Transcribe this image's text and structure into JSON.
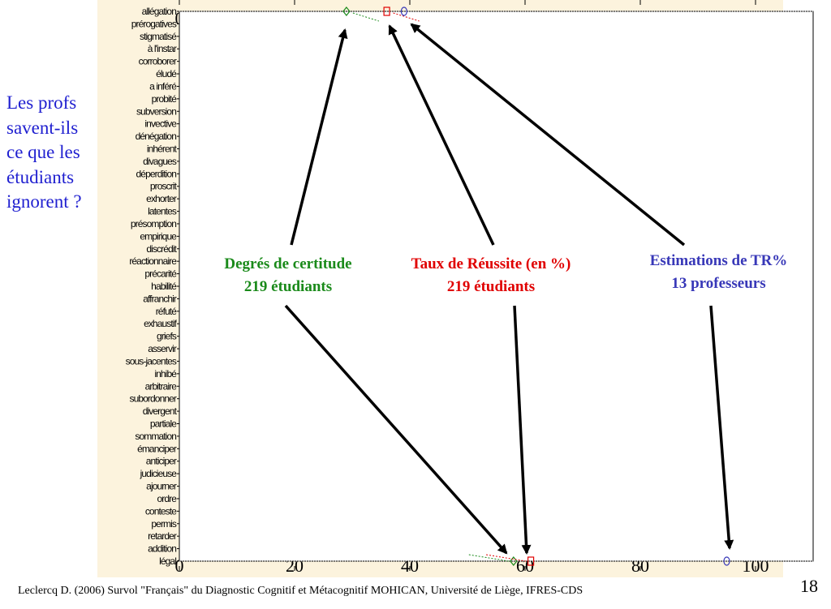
{
  "question": "Les profs\nsavent-ils\nce que les\nétudiants\nignorent ?",
  "callouts": {
    "certitude": "Degrés de certitude\n219 étudiants",
    "reussite": "Taux de Réussite (en %)\n219 étudiants",
    "estimations": "Estimations de TR%\n13 professeurs"
  },
  "colors": {
    "certitude": "#1a8a1a",
    "reussite": "#e00000",
    "estimations": "#3838b8"
  },
  "footer": "Leclercq D. (2006) Survol \"Français\" du Diagnostic Cognitif et Métacognitif MOHICAN,  Université de Liège, IFRES-CDS",
  "slide_number": "18",
  "chart_data": {
    "type": "scatter",
    "orientation": "horizontal",
    "xlim": [
      0,
      100
    ],
    "x_ticks": [
      "0",
      "20",
      "40",
      "60",
      "80",
      "100"
    ],
    "categories": [
      "allégation",
      "prérogatives",
      "stigmatisé",
      "à l'instar",
      "corroborer",
      "éludé",
      "a inféré",
      "probité",
      "subversion",
      "invective",
      "dénégation",
      "inhérent",
      "divagues",
      "déperdition",
      "proscrit",
      "exhorter",
      "latentes",
      "présomption",
      "empirique",
      "discrédit",
      "réactionnaire",
      "précarité",
      "habilité",
      "affranchir",
      "réfuté",
      "exhaustif",
      "griefs",
      "asservir",
      "sous-jacentes",
      "inhibé",
      "arbitraire",
      "subordonner",
      "divergent",
      "partiale",
      "sommation",
      "émanciper",
      "anticiper",
      "judicieuse",
      "ajourner",
      "ordre",
      "conteste",
      "permis",
      "retarder",
      "addition",
      "légal"
    ],
    "series": [
      {
        "name": "Degrés de certitude",
        "marker": "diamond",
        "points": [
          {
            "label": "allégation",
            "x": 29
          },
          {
            "label": "légal",
            "x": 58
          }
        ]
      },
      {
        "name": "Taux de Réussite (en %)",
        "marker": "square",
        "points": [
          {
            "label": "allégation",
            "x": 36
          },
          {
            "label": "légal",
            "x": 61
          }
        ]
      },
      {
        "name": "Estimations de TR%",
        "marker": "circle",
        "points": [
          {
            "label": "allégation",
            "x": 39
          },
          {
            "label": "légal",
            "x": 95
          }
        ]
      }
    ],
    "grid": false,
    "legend": "none"
  }
}
